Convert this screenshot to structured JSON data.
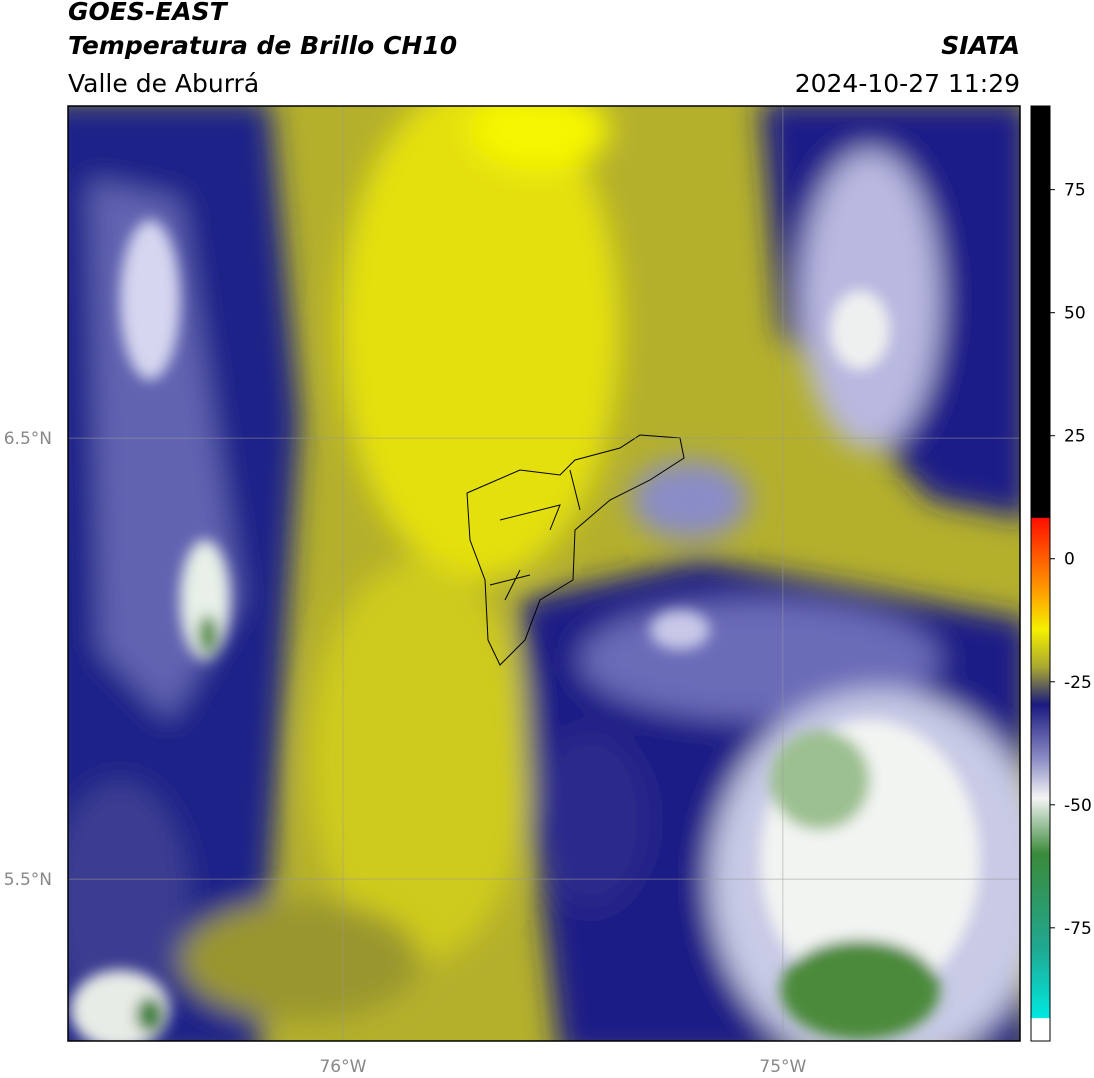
{
  "header": {
    "line1": "GOES-EAST",
    "line2": "Temperatura de Brillo CH10",
    "line3": "Valle de Aburrá",
    "org": "SIATA",
    "datetime": "2024-10-27 11:29"
  },
  "map": {
    "xlim": [
      -76.625,
      -74.461
    ],
    "ylim": [
      5.133,
      7.253
    ],
    "xticks": [
      {
        "value": -76,
        "label": "76°W"
      },
      {
        "value": -75,
        "label": "75°W"
      }
    ],
    "yticks": [
      {
        "value": 6.5,
        "label": "6.5°N"
      },
      {
        "value": 5.5,
        "label": "5.5°N"
      }
    ]
  },
  "colorbar": {
    "lim": [
      -98,
      92
    ],
    "ticks": [
      75,
      50,
      25,
      0,
      -25,
      -50,
      -75
    ]
  }
}
